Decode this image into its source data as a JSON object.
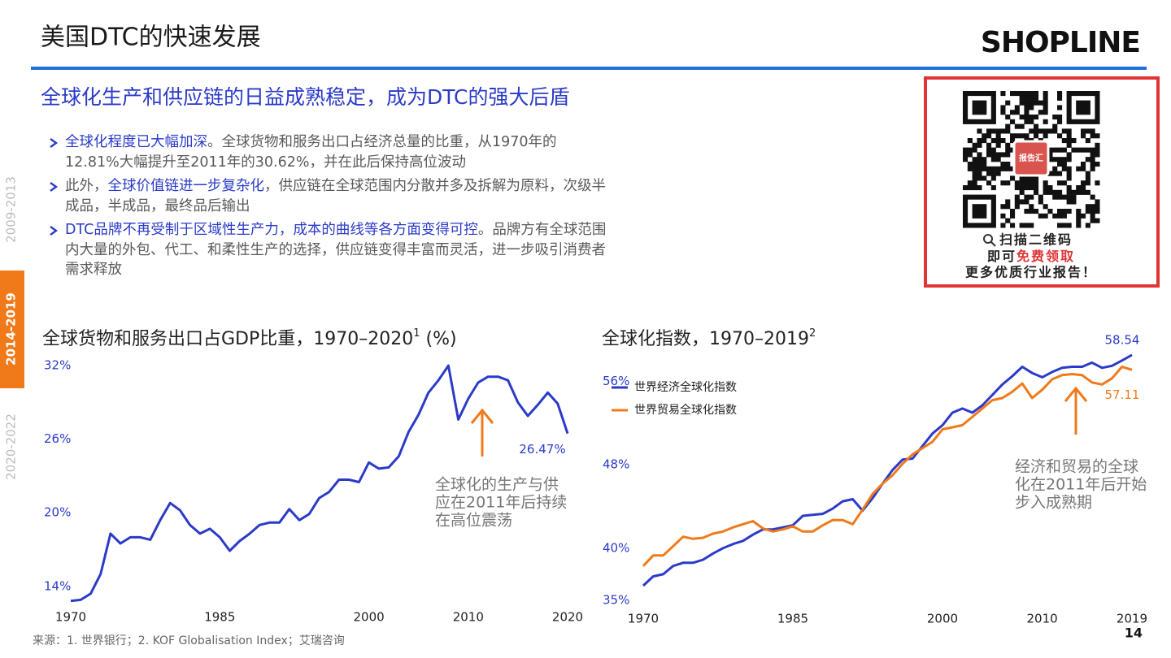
{
  "header": {
    "title": "美国DTC的快速发展",
    "logo": "SHOPLINE",
    "subtitle": "全球化生产和供应链的日益成熟稳定，成为DTC的强大后盾"
  },
  "tabs": [
    {
      "label": "2009-2013"
    },
    {
      "label": "2014-2019",
      "active": true
    },
    {
      "label": "2020-2022"
    }
  ],
  "bullets": [
    [
      {
        "text": "全球化程度已大幅加深",
        "em": true
      },
      {
        "text": "。全球货物和服务出口占经济总量的比重，从1970年的12.81%大幅提升至2011年的30.62%，并在此后保持高位波动"
      }
    ],
    [
      {
        "text": "此外，"
      },
      {
        "text": "全球价值链进一步复杂化",
        "em": true
      },
      {
        "text": "，供应链在全球范围内分散并多及拆解为原料，次级半成品，半成品，最终品后输出"
      }
    ],
    [
      {
        "text": "DTC品牌不再受制于区域性生产力，成本的曲线等各方面变得可控",
        "em": true
      },
      {
        "text": "。品牌方有全球范围内大量的外包、代工、和柔性生产的选择，供应链变得丰富而灵活，进一步吸引消费者需求释放"
      }
    ]
  ],
  "qr": {
    "logo": "报告汇",
    "line1": "扫描二维码",
    "line2a": "即可",
    "line2b": "免费领取",
    "line3": "更多优质行业报告！"
  },
  "source": "来源：1. 世界银行；2. KOF Globalisation Index；艾瑞咨询",
  "page_number": "14",
  "chart_data": [
    {
      "type": "line",
      "title": "全球货物和服务出口占GDP比重，1970–2020",
      "title_superscript": "1",
      "title_suffix": " (%)",
      "x": [
        1970,
        1971,
        1972,
        1973,
        1974,
        1975,
        1976,
        1977,
        1978,
        1979,
        1980,
        1981,
        1982,
        1983,
        1984,
        1985,
        1986,
        1987,
        1988,
        1989,
        1990,
        1991,
        1992,
        1993,
        1994,
        1995,
        1996,
        1997,
        1998,
        1999,
        2000,
        2001,
        2002,
        2003,
        2004,
        2005,
        2006,
        2007,
        2008,
        2009,
        2010,
        2011,
        2012,
        2013,
        2014,
        2015,
        2016,
        2017,
        2018,
        2019,
        2020
      ],
      "values": [
        12.81,
        12.9,
        13.4,
        15.0,
        18.3,
        17.5,
        18.0,
        18.0,
        17.8,
        19.4,
        20.8,
        20.2,
        19.0,
        18.3,
        18.7,
        18.0,
        16.9,
        17.7,
        18.3,
        19.0,
        19.2,
        19.2,
        20.3,
        19.4,
        19.9,
        21.2,
        21.7,
        22.7,
        22.7,
        22.5,
        24.1,
        23.6,
        23.7,
        24.6,
        26.6,
        28.0,
        29.8,
        30.8,
        32.0,
        27.6,
        29.3,
        30.62,
        31.1,
        31.1,
        30.8,
        29.0,
        27.9,
        28.8,
        29.8,
        28.9,
        26.47
      ],
      "value_labels": [
        null,
        null,
        null,
        null,
        null,
        null,
        null,
        null,
        null,
        null,
        null,
        null,
        null,
        null,
        null,
        null,
        null,
        null,
        null,
        null,
        null,
        null,
        null,
        null,
        null,
        null,
        null,
        null,
        null,
        null,
        null,
        null,
        null,
        null,
        null,
        null,
        null,
        null,
        null,
        null,
        null,
        null,
        null,
        null,
        null,
        null,
        null,
        null,
        null,
        null,
        "26.47%"
      ],
      "color": "#2b3bc8",
      "xlim": [
        1970,
        2020
      ],
      "xticks": [
        1970,
        1985,
        2000,
        2010,
        2020
      ],
      "ylim": [
        12,
        33
      ],
      "yticks": [
        {
          "value": 14,
          "label": "14%"
        },
        {
          "value": 20,
          "label": "20%"
        },
        {
          "value": 26,
          "label": "26%"
        },
        {
          "value": 32,
          "label": "32%"
        }
      ],
      "grid": false,
      "annotation": [
        "全球化的生产与供",
        "应在2011年后持续",
        "在高位震荡"
      ]
    },
    {
      "type": "line",
      "title": "全球化指数，1970–2019",
      "title_superscript": "2",
      "x": [
        1970,
        1971,
        1972,
        1973,
        1974,
        1975,
        1976,
        1977,
        1978,
        1979,
        1980,
        1981,
        1982,
        1983,
        1984,
        1985,
        1986,
        1987,
        1988,
        1989,
        1990,
        1991,
        1992,
        1993,
        1994,
        1995,
        1996,
        1997,
        1998,
        1999,
        2000,
        2001,
        2002,
        2003,
        2004,
        2005,
        2006,
        2007,
        2008,
        2009,
        2010,
        2011,
        2012,
        2013,
        2014,
        2015,
        2016,
        2017,
        2018,
        2019
      ],
      "series": [
        {
          "name": "世界经济全球化指数",
          "color": "#2b3bc8",
          "values": [
            36.4,
            37.3,
            37.5,
            38.3,
            38.6,
            38.6,
            38.9,
            39.5,
            40.0,
            40.4,
            40.7,
            41.3,
            41.8,
            41.8,
            42.0,
            42.2,
            43.1,
            43.2,
            43.3,
            43.8,
            44.5,
            44.7,
            43.6,
            44.8,
            46.2,
            47.5,
            48.5,
            48.6,
            49.8,
            51.0,
            51.8,
            53.0,
            53.4,
            53.0,
            53.7,
            54.7,
            55.7,
            56.5,
            57.4,
            56.8,
            56.4,
            56.9,
            57.3,
            57.4,
            57.4,
            57.8,
            57.3,
            57.5,
            58.0,
            58.54
          ]
        },
        {
          "name": "世界贸易全球化指数",
          "color": "#f07a1a",
          "values": [
            38.3,
            39.3,
            39.3,
            40.2,
            41.1,
            40.9,
            41.0,
            41.4,
            41.6,
            42.0,
            42.3,
            42.6,
            41.9,
            41.6,
            41.8,
            42.1,
            41.6,
            41.6,
            42.2,
            42.7,
            42.7,
            42.3,
            43.7,
            45.2,
            46.2,
            47.0,
            48.1,
            49.0,
            49.6,
            50.2,
            51.4,
            51.6,
            51.8,
            52.6,
            53.4,
            54.2,
            54.4,
            55.0,
            55.8,
            54.4,
            55.2,
            56.2,
            56.6,
            56.7,
            56.6,
            55.9,
            55.7,
            56.3,
            57.4,
            57.11
          ]
        }
      ],
      "xlim": [
        1970,
        2019
      ],
      "xticks": [
        1970,
        1985,
        2000,
        2010,
        2019
      ],
      "ylim": [
        35,
        59
      ],
      "yticks": [
        {
          "value": 35,
          "label": "35%"
        },
        {
          "value": 40,
          "label": "40%"
        },
        {
          "value": 48,
          "label": "48%"
        },
        {
          "value": 56,
          "label": "56%"
        }
      ],
      "grid": false,
      "legend": "top-left",
      "annotation": [
        "经济和贸易的全球",
        "化在2011年后开始",
        "步入成熟期"
      ]
    }
  ]
}
